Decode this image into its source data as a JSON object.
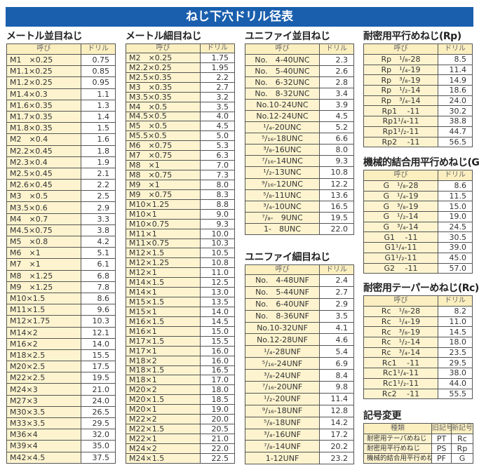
{
  "title": "ねじ下穴ドリル径表",
  "colors": {
    "title_bg": "#1a5fad",
    "name_cell_bg": "#fdf4cf",
    "header_bg": "#fbefc0"
  },
  "tables": [
    {
      "id": "metric-coarse",
      "title": "メートル並目ねじ",
      "headers": [
        "呼び",
        "ドリル"
      ],
      "rows": [
        [
          "M1　×0.25",
          "0.75"
        ],
        [
          "M1.1×0.25",
          "0.85"
        ],
        [
          "M1.2×0.25",
          "0.95"
        ],
        [
          "M1.4×0.3",
          "1.1"
        ],
        [
          "M1.6×0.35",
          "1.3"
        ],
        [
          "M1.7×0.35",
          "1.4"
        ],
        [
          "M1.8×0.35",
          "1.5"
        ],
        [
          "M2　×0.4",
          "1.6"
        ],
        [
          "M2.2×0.45",
          "1.8"
        ],
        [
          "M2.3×0.4",
          "1.9"
        ],
        [
          "M2.5×0.45",
          "2.1"
        ],
        [
          "M2.6×0.45",
          "2.2"
        ],
        [
          "M3　×0.5",
          "2.5"
        ],
        [
          "M3.5×0.6",
          "2.9"
        ],
        [
          "M4　×0.7",
          "3.3"
        ],
        [
          "M4.5×0.75",
          "3.8"
        ],
        [
          "M5　×0.8",
          "4.2"
        ],
        [
          "M6　×1",
          "5.1"
        ],
        [
          "M7　×1",
          "6.1"
        ],
        [
          "M8　×1.25",
          "6.8"
        ],
        [
          "M9　×1.25",
          "7.8"
        ],
        [
          "M10×1.5",
          "8.6"
        ],
        [
          "M11×1.5",
          "9.6"
        ],
        [
          "M12×1.75",
          "10.3"
        ],
        [
          "M14×2",
          "12.1"
        ],
        [
          "M16×2",
          "14.0"
        ],
        [
          "M18×2.5",
          "15.5"
        ],
        [
          "M20×2.5",
          "17.5"
        ],
        [
          "M22×2.5",
          "19.5"
        ],
        [
          "M24×3",
          "21.0"
        ],
        [
          "M27×3",
          "24.0"
        ],
        [
          "M30×3.5",
          "26.5"
        ],
        [
          "M33×3.5",
          "29.5"
        ],
        [
          "M36×4",
          "32.0"
        ],
        [
          "M39×4",
          "35.0"
        ],
        [
          "M42×4.5",
          "37.5"
        ]
      ]
    },
    {
      "id": "metric-fine",
      "title": "メートル細目ねじ",
      "headers": [
        "呼び",
        "ドリル"
      ],
      "rows": [
        [
          "M2　×0.25",
          "1.75"
        ],
        [
          "M2.2×0.25",
          "1.95"
        ],
        [
          "M2.5×0.35",
          "2.2"
        ],
        [
          "M3　×0.35",
          "2.7"
        ],
        [
          "M3.5×0.35",
          "3.2"
        ],
        [
          "M4　×0.5",
          "3.5"
        ],
        [
          "M4.5×0.5",
          "4.0"
        ],
        [
          "M5　×0.5",
          "4.5"
        ],
        [
          "M5.5×0.5",
          "5.0"
        ],
        [
          "M6　×0.75",
          "5.3"
        ],
        [
          "M7　×0.75",
          "6.3"
        ],
        [
          "M8　×1",
          "7.0"
        ],
        [
          "M8　×0.75",
          "7.3"
        ],
        [
          "M9　×1",
          "8.0"
        ],
        [
          "M9　×0.75",
          "8.3"
        ],
        [
          "M10×1.25",
          "8.8"
        ],
        [
          "M10×1",
          "9.0"
        ],
        [
          "M10×0.75",
          "9.3"
        ],
        [
          "M11×1",
          "10.0"
        ],
        [
          "M11×0.75",
          "10.3"
        ],
        [
          "M12×1.5",
          "10.5"
        ],
        [
          "M12×1.25",
          "10.8"
        ],
        [
          "M12×1",
          "11.0"
        ],
        [
          "M14×1.5",
          "12.5"
        ],
        [
          "M14×1",
          "13.0"
        ],
        [
          "M15×1.5",
          "13.5"
        ],
        [
          "M15×1",
          "14.0"
        ],
        [
          "M16×1.5",
          "14.5"
        ],
        [
          "M16×1",
          "15.0"
        ],
        [
          "M17×1.5",
          "15.5"
        ],
        [
          "M17×1",
          "16.0"
        ],
        [
          "M18×2",
          "16.0"
        ],
        [
          "M18×1.5",
          "16.5"
        ],
        [
          "M18×1",
          "17.0"
        ],
        [
          "M20×2",
          "18.0"
        ],
        [
          "M20×1.5",
          "18.5"
        ],
        [
          "M20×1",
          "19.0"
        ],
        [
          "M22×2",
          "20.0"
        ],
        [
          "M22×1.5",
          "20.5"
        ],
        [
          "M22×1",
          "21.0"
        ],
        [
          "M24×2",
          "22.0"
        ],
        [
          "M24×1.5",
          "22.5"
        ]
      ]
    },
    {
      "id": "unc",
      "title": "ユニファイ並目ねじ",
      "headers": [
        "呼び",
        "ドリル"
      ],
      "rows": [
        [
          "No.　4-40UNC",
          "2.3"
        ],
        [
          "No.　5-40UNC",
          "2.6"
        ],
        [
          "No.　6-32UNC",
          "2.8"
        ],
        [
          "No.　8-32UNC",
          "3.4"
        ],
        [
          "No.10-24UNC",
          "3.9"
        ],
        [
          "No.12-24UNC",
          "4.5"
        ],
        [
          "¹/₄-20UNC",
          "5.2"
        ],
        [
          "⁵/₁₆-18UNC",
          "6.6"
        ],
        [
          "³/₈-16UNC",
          "8.0"
        ],
        [
          "⁷/₁₆-14UNC",
          "9.3"
        ],
        [
          "¹/₂-13UNC",
          "10.8"
        ],
        [
          "⁹/₁₆-12UNC",
          "12.2"
        ],
        [
          "⁵/₈-11UNC",
          "13.6"
        ],
        [
          "³/₄-10UNC",
          "16.5"
        ],
        [
          "⁷/₈-　9UNC",
          "19.5"
        ],
        [
          "1-　8UNC",
          "22.0"
        ]
      ]
    },
    {
      "id": "unf",
      "title": "ユニファイ細目ねじ",
      "headers": [
        "呼び",
        "ドリル"
      ],
      "rows": [
        [
          "No.　4-48UNF",
          "2.4"
        ],
        [
          "No.　5-44UNF",
          "2.7"
        ],
        [
          "No.　6-40UNF",
          "2.9"
        ],
        [
          "No.　8-36UNF",
          "3.5"
        ],
        [
          "No.10-32UNF",
          "4.1"
        ],
        [
          "No.12-28UNF",
          "4.6"
        ],
        [
          "¹/₄-28UNF",
          "5.4"
        ],
        [
          "⁵/₁₆-24UNF",
          "6.9"
        ],
        [
          "³/₈-24UNF",
          "8.4"
        ],
        [
          "⁷/₁₆-20UNF",
          "9.8"
        ],
        [
          "¹/₂-20UNF",
          "11.4"
        ],
        [
          "⁹/₁₆-18UNF",
          "12.8"
        ],
        [
          "⁵/₈-18UNF",
          "14.2"
        ],
        [
          "³/₄-16UNF",
          "17.2"
        ],
        [
          "⁷/₈-14UNF",
          "20.2"
        ],
        [
          "1-12UNF",
          "23.2"
        ]
      ]
    },
    {
      "id": "rp",
      "title": "耐密用平行めねじ(Rp)",
      "headers": [
        "呼び",
        "ドリル"
      ],
      "rows": [
        [
          "Rp　¹/₈-28",
          "8.5"
        ],
        [
          "Rp　¹/₄-19",
          "11.4"
        ],
        [
          "Rp　³/₈-19",
          "14.9"
        ],
        [
          "Rp　¹/₂-14",
          "18.6"
        ],
        [
          "Rp　³/₄-14",
          "24.0"
        ],
        [
          "Rp1　 -11",
          "30.2"
        ],
        [
          "Rp1¹/₄-11",
          "38.8"
        ],
        [
          "Rp1¹/₂-11",
          "44.7"
        ],
        [
          "Rp2　 -11",
          "56.5"
        ]
      ]
    },
    {
      "id": "g",
      "title": "機械的結合用平行めねじ(G)",
      "headers": [
        "呼び",
        "ドリル"
      ],
      "rows": [
        [
          "G　¹/₈-28",
          "8.6"
        ],
        [
          "G　¹/₄-19",
          "11.5"
        ],
        [
          "G　³/₈-19",
          "15.0"
        ],
        [
          "G　¹/₂-14",
          "19.0"
        ],
        [
          "G　³/₄-14",
          "24.5"
        ],
        [
          "G1　 -11",
          "30.5"
        ],
        [
          "G1¹/₄-11",
          "39.0"
        ],
        [
          "G1¹/₂-11",
          "45.0"
        ],
        [
          "G2　 -11",
          "57.0"
        ]
      ]
    },
    {
      "id": "rc",
      "title": "耐密用テーパーめねじ(Rc)",
      "headers": [
        "呼び",
        "ドリル"
      ],
      "rows": [
        [
          "Rc　¹/₈-28",
          "8.2"
        ],
        [
          "Rc　¹/₄-19",
          "11.0"
        ],
        [
          "Rc　³/₈-19",
          "14.5"
        ],
        [
          "Rc　¹/₂-14",
          "18.0"
        ],
        [
          "Rc　³/₄-14",
          "23.5"
        ],
        [
          "Rc1　 -11",
          "29.5"
        ],
        [
          "Rc1¹/₄-11",
          "38.0"
        ],
        [
          "Rc1¹/₂-11",
          "44.0"
        ],
        [
          "Rc2　 -11",
          "55.5"
        ]
      ]
    }
  ],
  "symbol_change": {
    "title": "記号変更",
    "headers": [
      "種類",
      "旧記号",
      "新記号"
    ],
    "rows": [
      [
        "耐密用テーパめねじ",
        "PT",
        "Rc"
      ],
      [
        "耐密用平行めねじ",
        "PS",
        "Rp"
      ],
      [
        "機械的結合用平行めねじ",
        "PF",
        "G"
      ]
    ]
  }
}
